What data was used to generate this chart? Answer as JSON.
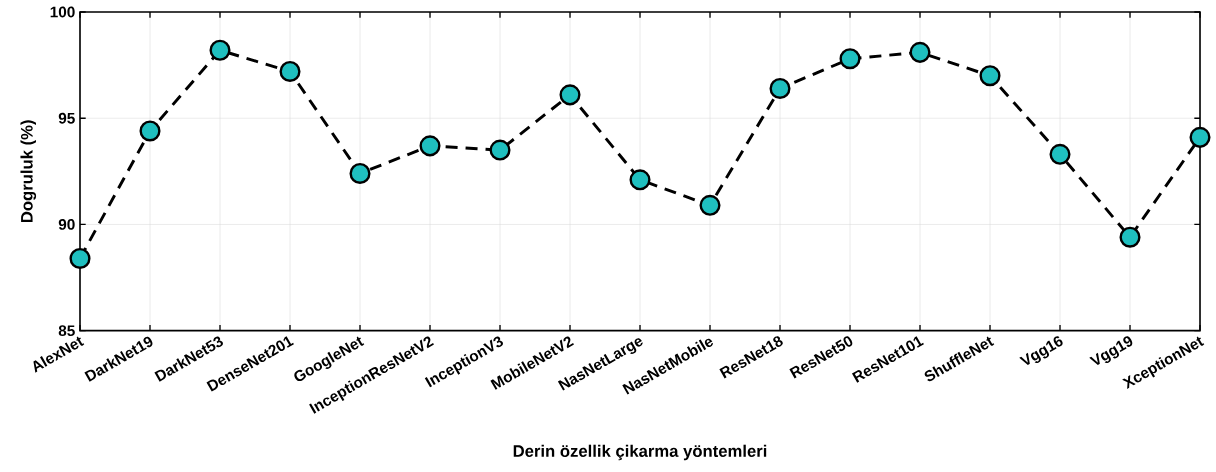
{
  "chart_data": {
    "type": "line",
    "xlabel": "Derin özellik çikarma yöntemleri",
    "ylabel": "Dogruluk (%)",
    "categories": [
      "AlexNet",
      "DarkNet19",
      "DarkNet53",
      "DenseNet201",
      "GoogleNet",
      "InceptionResNetV2",
      "InceptionV3",
      "MobileNetV2",
      "NasNetLarge",
      "NasNetMobile",
      "ResNet18",
      "ResNet50",
      "ResNet101",
      "ShuffleNet",
      "Vgg16",
      "Vgg19",
      "XceptionNet"
    ],
    "series": [
      {
        "color": "#1fbfbf",
        "values": [
          88.4,
          94.4,
          98.2,
          97.2,
          92.4,
          93.7,
          93.5,
          96.1,
          92.1,
          90.9,
          96.4,
          97.8,
          98.1,
          97.0,
          93.3,
          89.4,
          94.1
        ]
      }
    ],
    "ylim": [
      85,
      100
    ],
    "yticks": [
      85,
      90,
      95,
      100
    ],
    "grid": true,
    "marker": "circle",
    "line_style": "dashed"
  }
}
